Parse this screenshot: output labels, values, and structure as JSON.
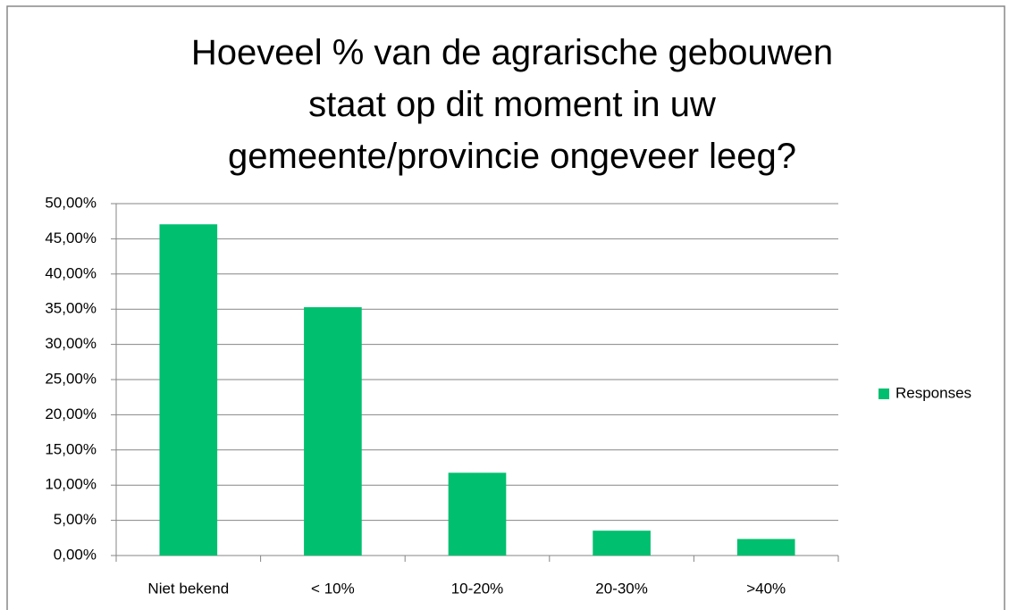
{
  "chart_data": {
    "type": "bar",
    "title": "Hoeveel % van de agrarische gebouwen staat op dit moment in uw gemeente/provincie ongeveer leeg?",
    "categories": [
      "Niet bekend",
      "< 10%",
      "10-20%",
      "20-30%",
      ">40%"
    ],
    "series": [
      {
        "name": "Responses",
        "color": "#00bf6f",
        "values": [
          47.06,
          35.29,
          11.76,
          3.53,
          2.35
        ]
      }
    ],
    "ylim": [
      0,
      50
    ],
    "yticks": [
      {
        "value": 0,
        "label": "0,00%"
      },
      {
        "value": 5,
        "label": "5,00%"
      },
      {
        "value": 10,
        "label": "10,00%"
      },
      {
        "value": 15,
        "label": "15,00%"
      },
      {
        "value": 20,
        "label": "20,00%"
      },
      {
        "value": 25,
        "label": "25,00%"
      },
      {
        "value": 30,
        "label": "30,00%"
      },
      {
        "value": 35,
        "label": "35,00%"
      },
      {
        "value": 40,
        "label": "40,00%"
      },
      {
        "value": 45,
        "label": "45,00%"
      },
      {
        "value": 50,
        "label": "50,00%"
      }
    ],
    "grid": true,
    "legend": "right"
  }
}
